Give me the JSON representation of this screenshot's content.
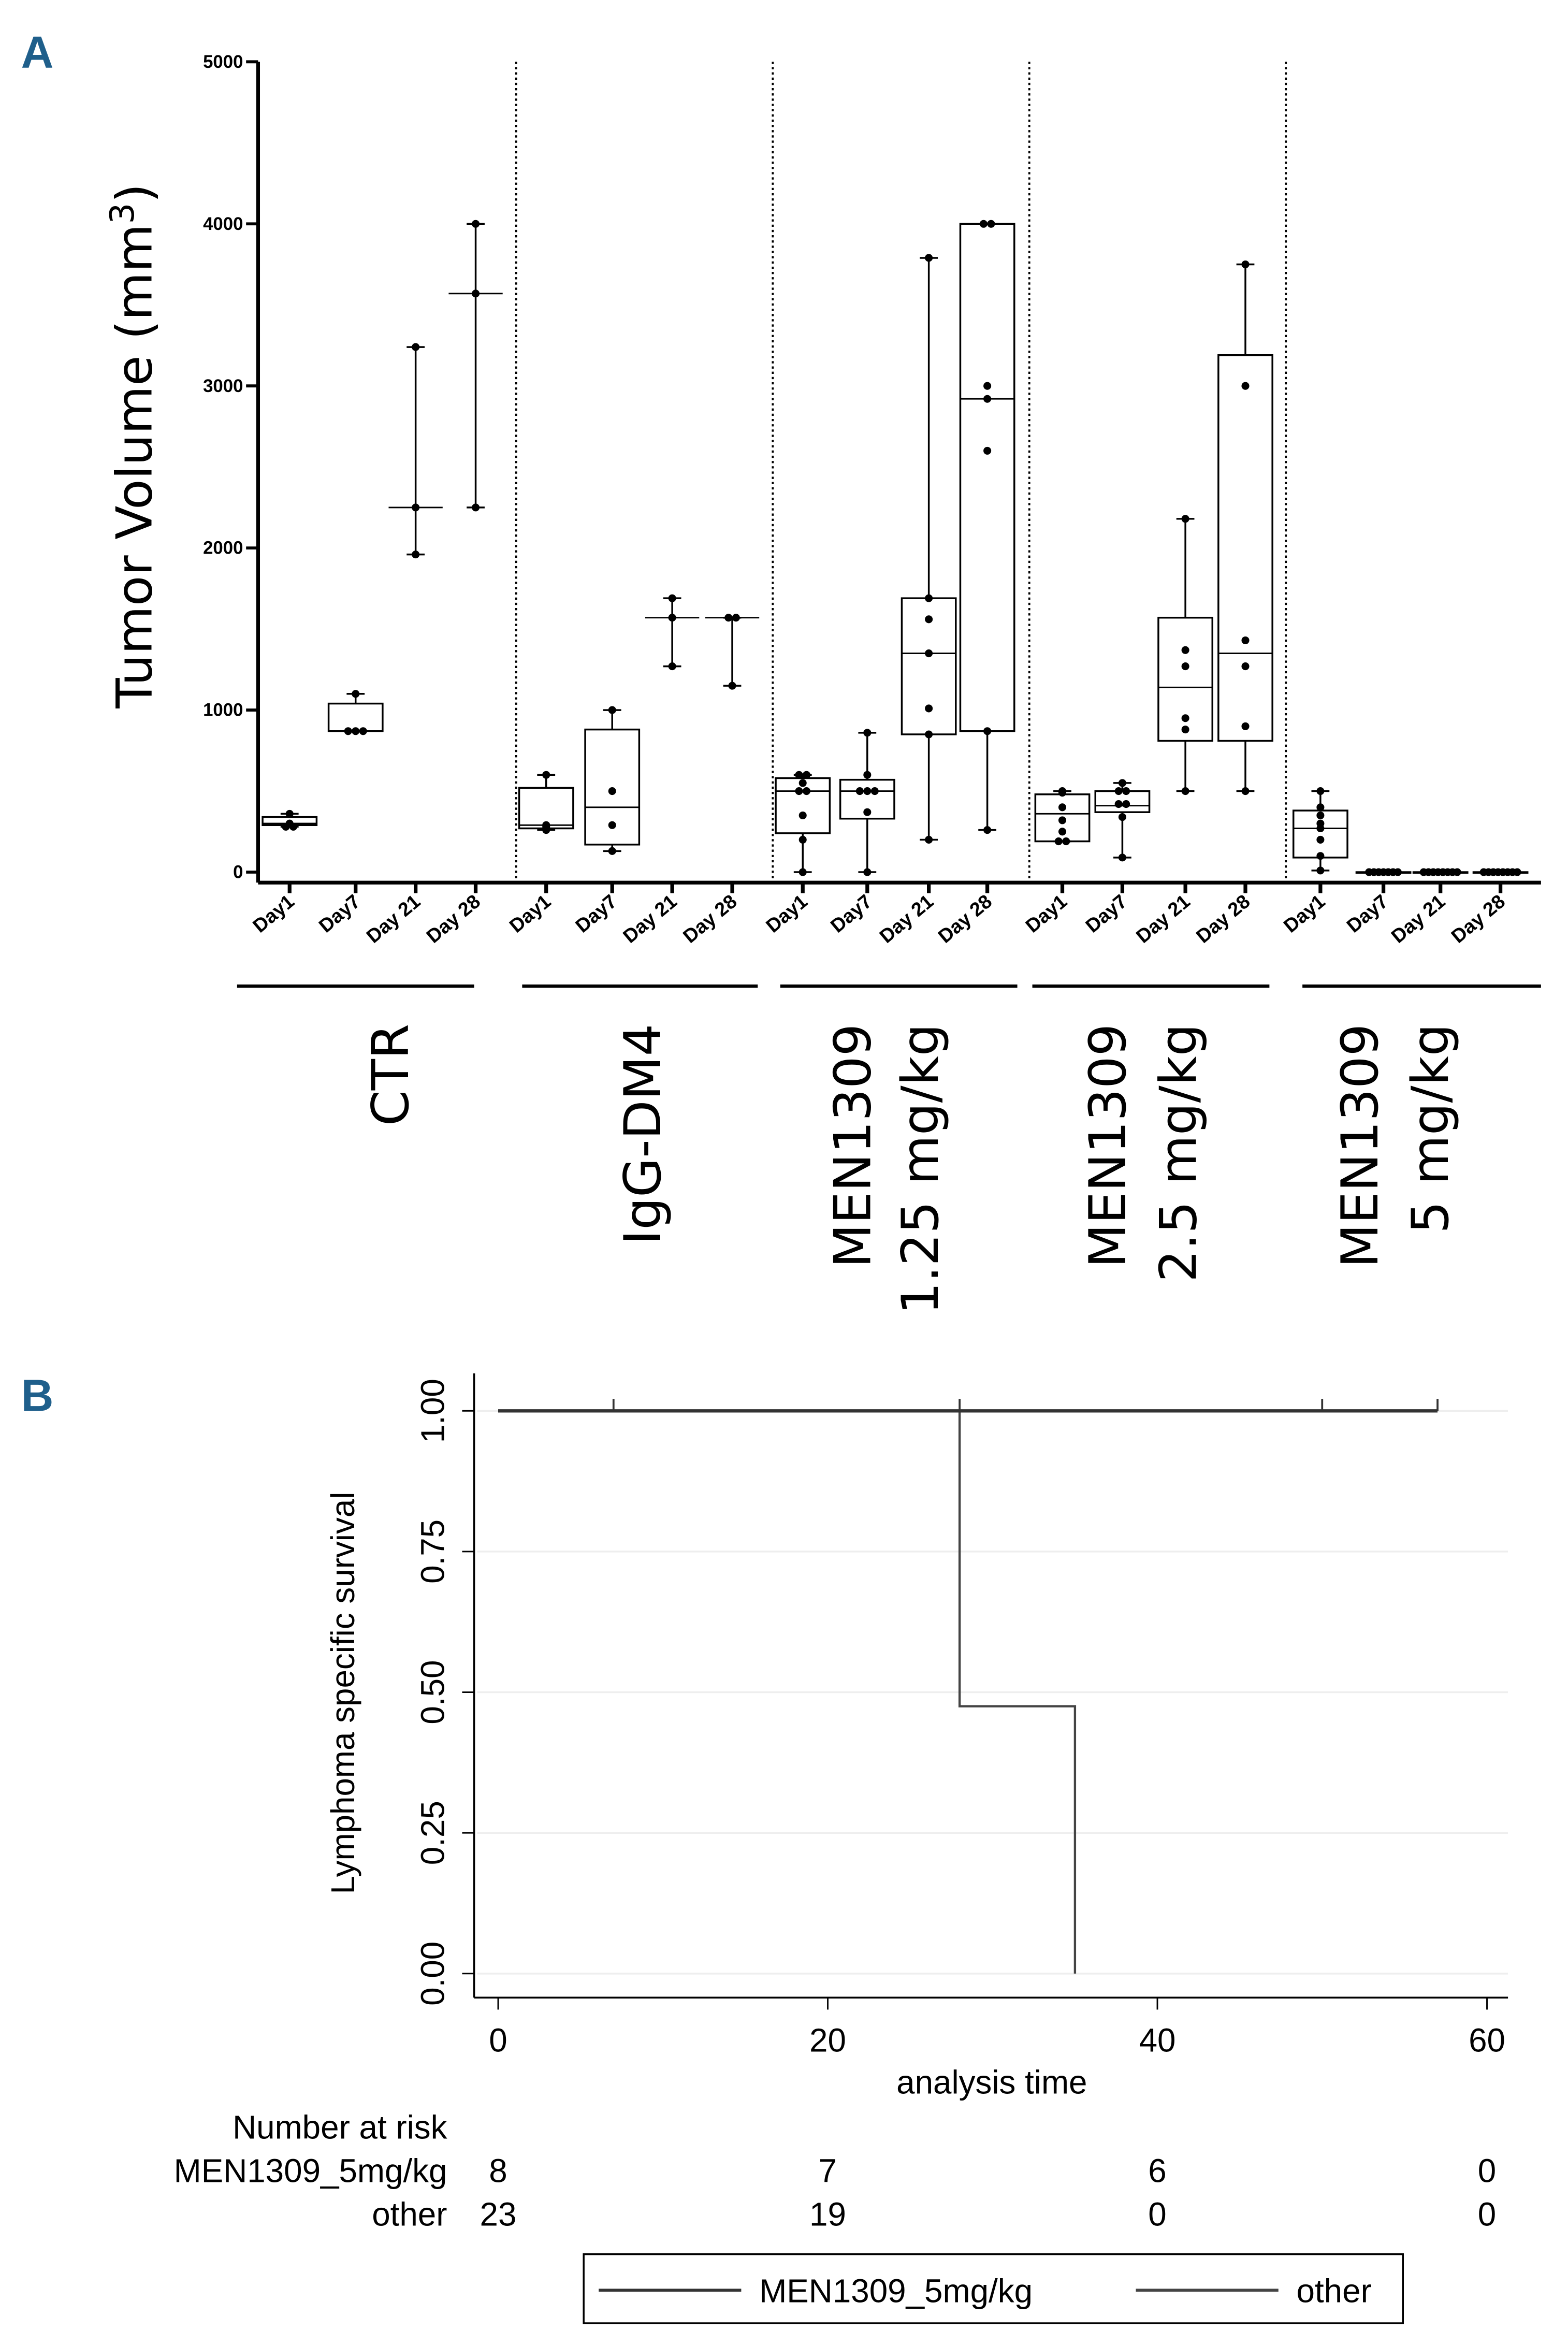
{
  "panel_a": {
    "letter": "A",
    "chart_data": {
      "type": "box",
      "ylabel": "Tumor Volume (mm",
      "ylabel_superscript": "3",
      "ylabel_close": ")",
      "ylim": [
        0,
        5000
      ],
      "yticks": [
        "0",
        "1000",
        "2000",
        "3000",
        "4000",
        "5000"
      ],
      "ytick_values": [
        0,
        1000,
        2000,
        3000,
        4000,
        5000
      ],
      "day_labels": [
        "Day1",
        "Day7",
        "Day 21",
        "Day 28"
      ],
      "groups": [
        {
          "label_lines": [
            "CTR"
          ],
          "boxes": [
            {
              "day": "Day1",
              "min": 280,
              "q1": 290,
              "median": 300,
              "q3": 340,
              "max": 360,
              "points": [
                360,
                300,
                280,
                280
              ]
            },
            {
              "day": "Day7",
              "min": 870,
              "q1": 870,
              "median": 870,
              "q3": 1040,
              "max": 1100,
              "points": [
                1100,
                870,
                870,
                870
              ]
            },
            {
              "day": "Day 21",
              "min": 1960,
              "median": 2250,
              "max": 3240,
              "box": false,
              "points": [
                3240,
                2250,
                1960
              ]
            },
            {
              "day": "Day 28",
              "min": 2250,
              "median": 3570,
              "max": 4000,
              "box": false,
              "points": [
                4000,
                3570,
                2250
              ]
            }
          ]
        },
        {
          "label_lines": [
            "IgG-DM4"
          ],
          "boxes": [
            {
              "day": "Day1",
              "min": 260,
              "q1": 270,
              "median": 290,
              "q3": 520,
              "max": 600,
              "points": [
                600,
                290,
                280,
                260
              ]
            },
            {
              "day": "Day7",
              "min": 130,
              "q1": 170,
              "median": 400,
              "q3": 880,
              "max": 1000,
              "points": [
                1000,
                500,
                290,
                130
              ]
            },
            {
              "day": "Day 21",
              "min": 1270,
              "median": 1570,
              "max": 1690,
              "box": false,
              "points": [
                1690,
                1570,
                1270
              ]
            },
            {
              "day": "Day 28",
              "min": 1150,
              "median": 1570,
              "max": 1570,
              "box": false,
              "points": [
                1570,
                1570,
                1150
              ]
            }
          ]
        },
        {
          "label_lines": [
            "MEN1309",
            "1.25 mg/kg"
          ],
          "boxes": [
            {
              "day": "Day1",
              "min": 0,
              "q1": 240,
              "median": 500,
              "q3": 580,
              "max": 600,
              "points": [
                600,
                600,
                550,
                500,
                500,
                350,
                200,
                0
              ]
            },
            {
              "day": "Day7",
              "min": 0,
              "q1": 330,
              "median": 500,
              "q3": 570,
              "max": 860,
              "points": [
                860,
                600,
                500,
                500,
                500,
                370,
                0
              ]
            },
            {
              "day": "Day 21",
              "min": 200,
              "q1": 850,
              "median": 1350,
              "q3": 1690,
              "max": 3790,
              "points": [
                3790,
                1690,
                1560,
                1350,
                1010,
                850,
                200
              ]
            },
            {
              "day": "Day 28",
              "min": 260,
              "q1": 870,
              "median": 2920,
              "q3": 4000,
              "max": 4000,
              "points": [
                4000,
                4000,
                3000,
                2920,
                2600,
                870,
                260
              ]
            }
          ]
        },
        {
          "label_lines": [
            "MEN1309",
            "2.5 mg/kg"
          ],
          "boxes": [
            {
              "day": "Day1",
              "min": 190,
              "q1": 190,
              "median": 360,
              "q3": 480,
              "max": 500,
              "points": [
                500,
                490,
                400,
                320,
                250,
                190,
                190
              ]
            },
            {
              "day": "Day7",
              "min": 90,
              "q1": 370,
              "median": 410,
              "q3": 500,
              "max": 550,
              "points": [
                550,
                500,
                500,
                420,
                420,
                340,
                90
              ]
            },
            {
              "day": "Day 21",
              "min": 500,
              "q1": 810,
              "median": 1140,
              "q3": 1570,
              "max": 2180,
              "points": [
                2180,
                1370,
                1270,
                950,
                880,
                500
              ]
            },
            {
              "day": "Day 28",
              "min": 500,
              "q1": 810,
              "median": 1350,
              "q3": 3190,
              "max": 3750,
              "points": [
                3750,
                3000,
                1430,
                1270,
                900,
                500
              ]
            }
          ]
        },
        {
          "label_lines": [
            "MEN1309",
            "5 mg/kg"
          ],
          "boxes": [
            {
              "day": "Day1",
              "min": 10,
              "q1": 90,
              "median": 270,
              "q3": 380,
              "max": 500,
              "points": [
                500,
                400,
                350,
                300,
                270,
                200,
                100,
                10
              ]
            },
            {
              "day": "Day7",
              "min": 0,
              "q1": 0,
              "median": 0,
              "q3": 0,
              "max": 0,
              "points": [
                0,
                0,
                0,
                0,
                0,
                0,
                0
              ]
            },
            {
              "day": "Day 21",
              "min": 0,
              "q1": 0,
              "median": 0,
              "q3": 0,
              "max": 0,
              "points": [
                0,
                0,
                0,
                0,
                0,
                0,
                0,
                0
              ]
            },
            {
              "day": "Day 28",
              "min": 0,
              "q1": 0,
              "median": 0,
              "q3": 0,
              "max": 0,
              "points": [
                0,
                0,
                0,
                0,
                0,
                0,
                0,
                0
              ]
            }
          ]
        }
      ]
    }
  },
  "panel_b": {
    "letter": "B",
    "chart_data": {
      "type": "line",
      "subtype": "kaplan-meier",
      "xlabel": "analysis time",
      "ylabel": "Lymphoma specific survival",
      "xlim": [
        0,
        60
      ],
      "ylim": [
        0,
        1
      ],
      "xticks": [
        "0",
        "20",
        "40",
        "60"
      ],
      "xtick_values": [
        0,
        20,
        40,
        60
      ],
      "yticks": [
        "0.00",
        "0.25",
        "0.50",
        "0.75",
        "1.00"
      ],
      "ytick_values": [
        0,
        0.25,
        0.5,
        0.75,
        1
      ],
      "grid": true,
      "legend_position": "bottom",
      "series": [
        {
          "name": "MEN1309_5mg/kg",
          "color": "#333333",
          "steps": [
            [
              0,
              1
            ],
            [
              57,
              1
            ]
          ],
          "censored": [
            7,
            28,
            50,
            57
          ]
        },
        {
          "name": "other",
          "color": "#444444",
          "steps": [
            [
              0,
              1
            ],
            [
              28,
              1
            ],
            [
              28,
              0.475
            ],
            [
              35,
              0.475
            ],
            [
              35,
              0
            ]
          ],
          "censored": []
        }
      ],
      "risk_table": {
        "title": "Number at risk",
        "rows": [
          {
            "label": "MEN1309_5mg/kg",
            "values": [
              "8",
              "7",
              "6",
              "0"
            ]
          },
          {
            "label": "other",
            "values": [
              "23",
              "19",
              "0",
              "0"
            ]
          }
        ]
      }
    }
  }
}
